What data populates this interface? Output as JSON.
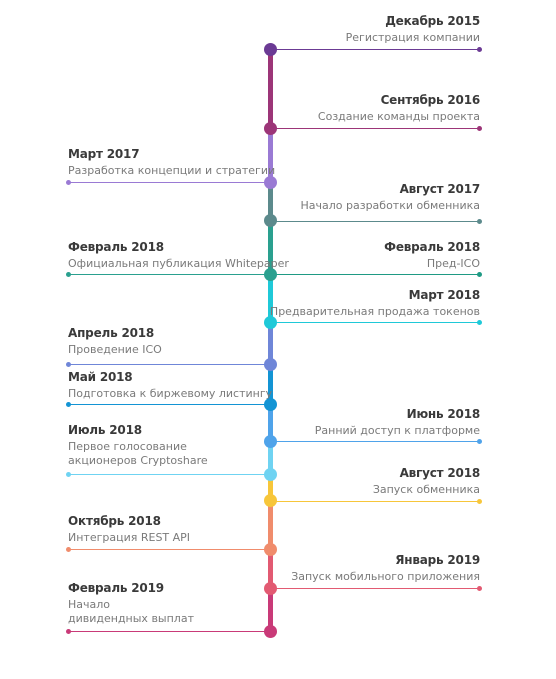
{
  "events": [
    {
      "date": "Декабрь 2015",
      "desc": "Регистрация компании",
      "side": "right",
      "color": "#6b3a94"
    },
    {
      "date": "Сентябрь 2016",
      "desc": "Создание команды проекта",
      "side": "right",
      "color": "#9c3578"
    },
    {
      "date": "Март 2017",
      "desc": "Разработка концепции и стратегии",
      "side": "left",
      "color": "#9a7ad4"
    },
    {
      "date": "Август 2017",
      "desc": "Начало разработки обменника",
      "side": "right",
      "color": "#5c8a8c"
    },
    {
      "date": "Февраль 2018",
      "desc": "Официальная публикация Whitepaper",
      "side": "left",
      "color": "#2aa08f"
    },
    {
      "date": "Февраль 2018",
      "desc": "Пред-ICO",
      "side": "right",
      "color": "#1f9a84"
    },
    {
      "date": "Март 2018",
      "desc": "Предварительная продажа токенов",
      "side": "right",
      "color": "#1fc9d8"
    },
    {
      "date": "Апрель 2018",
      "desc": "Проведение ICO",
      "side": "left",
      "color": "#6f86d8"
    },
    {
      "date": "Май 2018",
      "desc": "Подготовка к биржевому листингу",
      "side": "left",
      "color": "#1394d4"
    },
    {
      "date": "Июнь 2018",
      "desc": "Ранний доступ к платформе",
      "side": "right",
      "color": "#4fa3ea"
    },
    {
      "date": "Июль 2018",
      "desc": "Первое голосование\nакционеров Cryptoshare",
      "side": "left",
      "color": "#6fd3f2"
    },
    {
      "date": "Август 2018",
      "desc": "Запуск обменника",
      "side": "right",
      "color": "#f7c63a"
    },
    {
      "date": "Октябрь 2018",
      "desc": "Интеграция REST API",
      "side": "left",
      "color": "#f08c6c"
    },
    {
      "date": "Январь 2019",
      "desc": "Запуск мобильного приложения",
      "side": "right",
      "color": "#e25a72"
    },
    {
      "date": "Февраль 2019",
      "desc": "Начало\nдивидендных выплат",
      "side": "left",
      "color": "#c93a78"
    }
  ]
}
